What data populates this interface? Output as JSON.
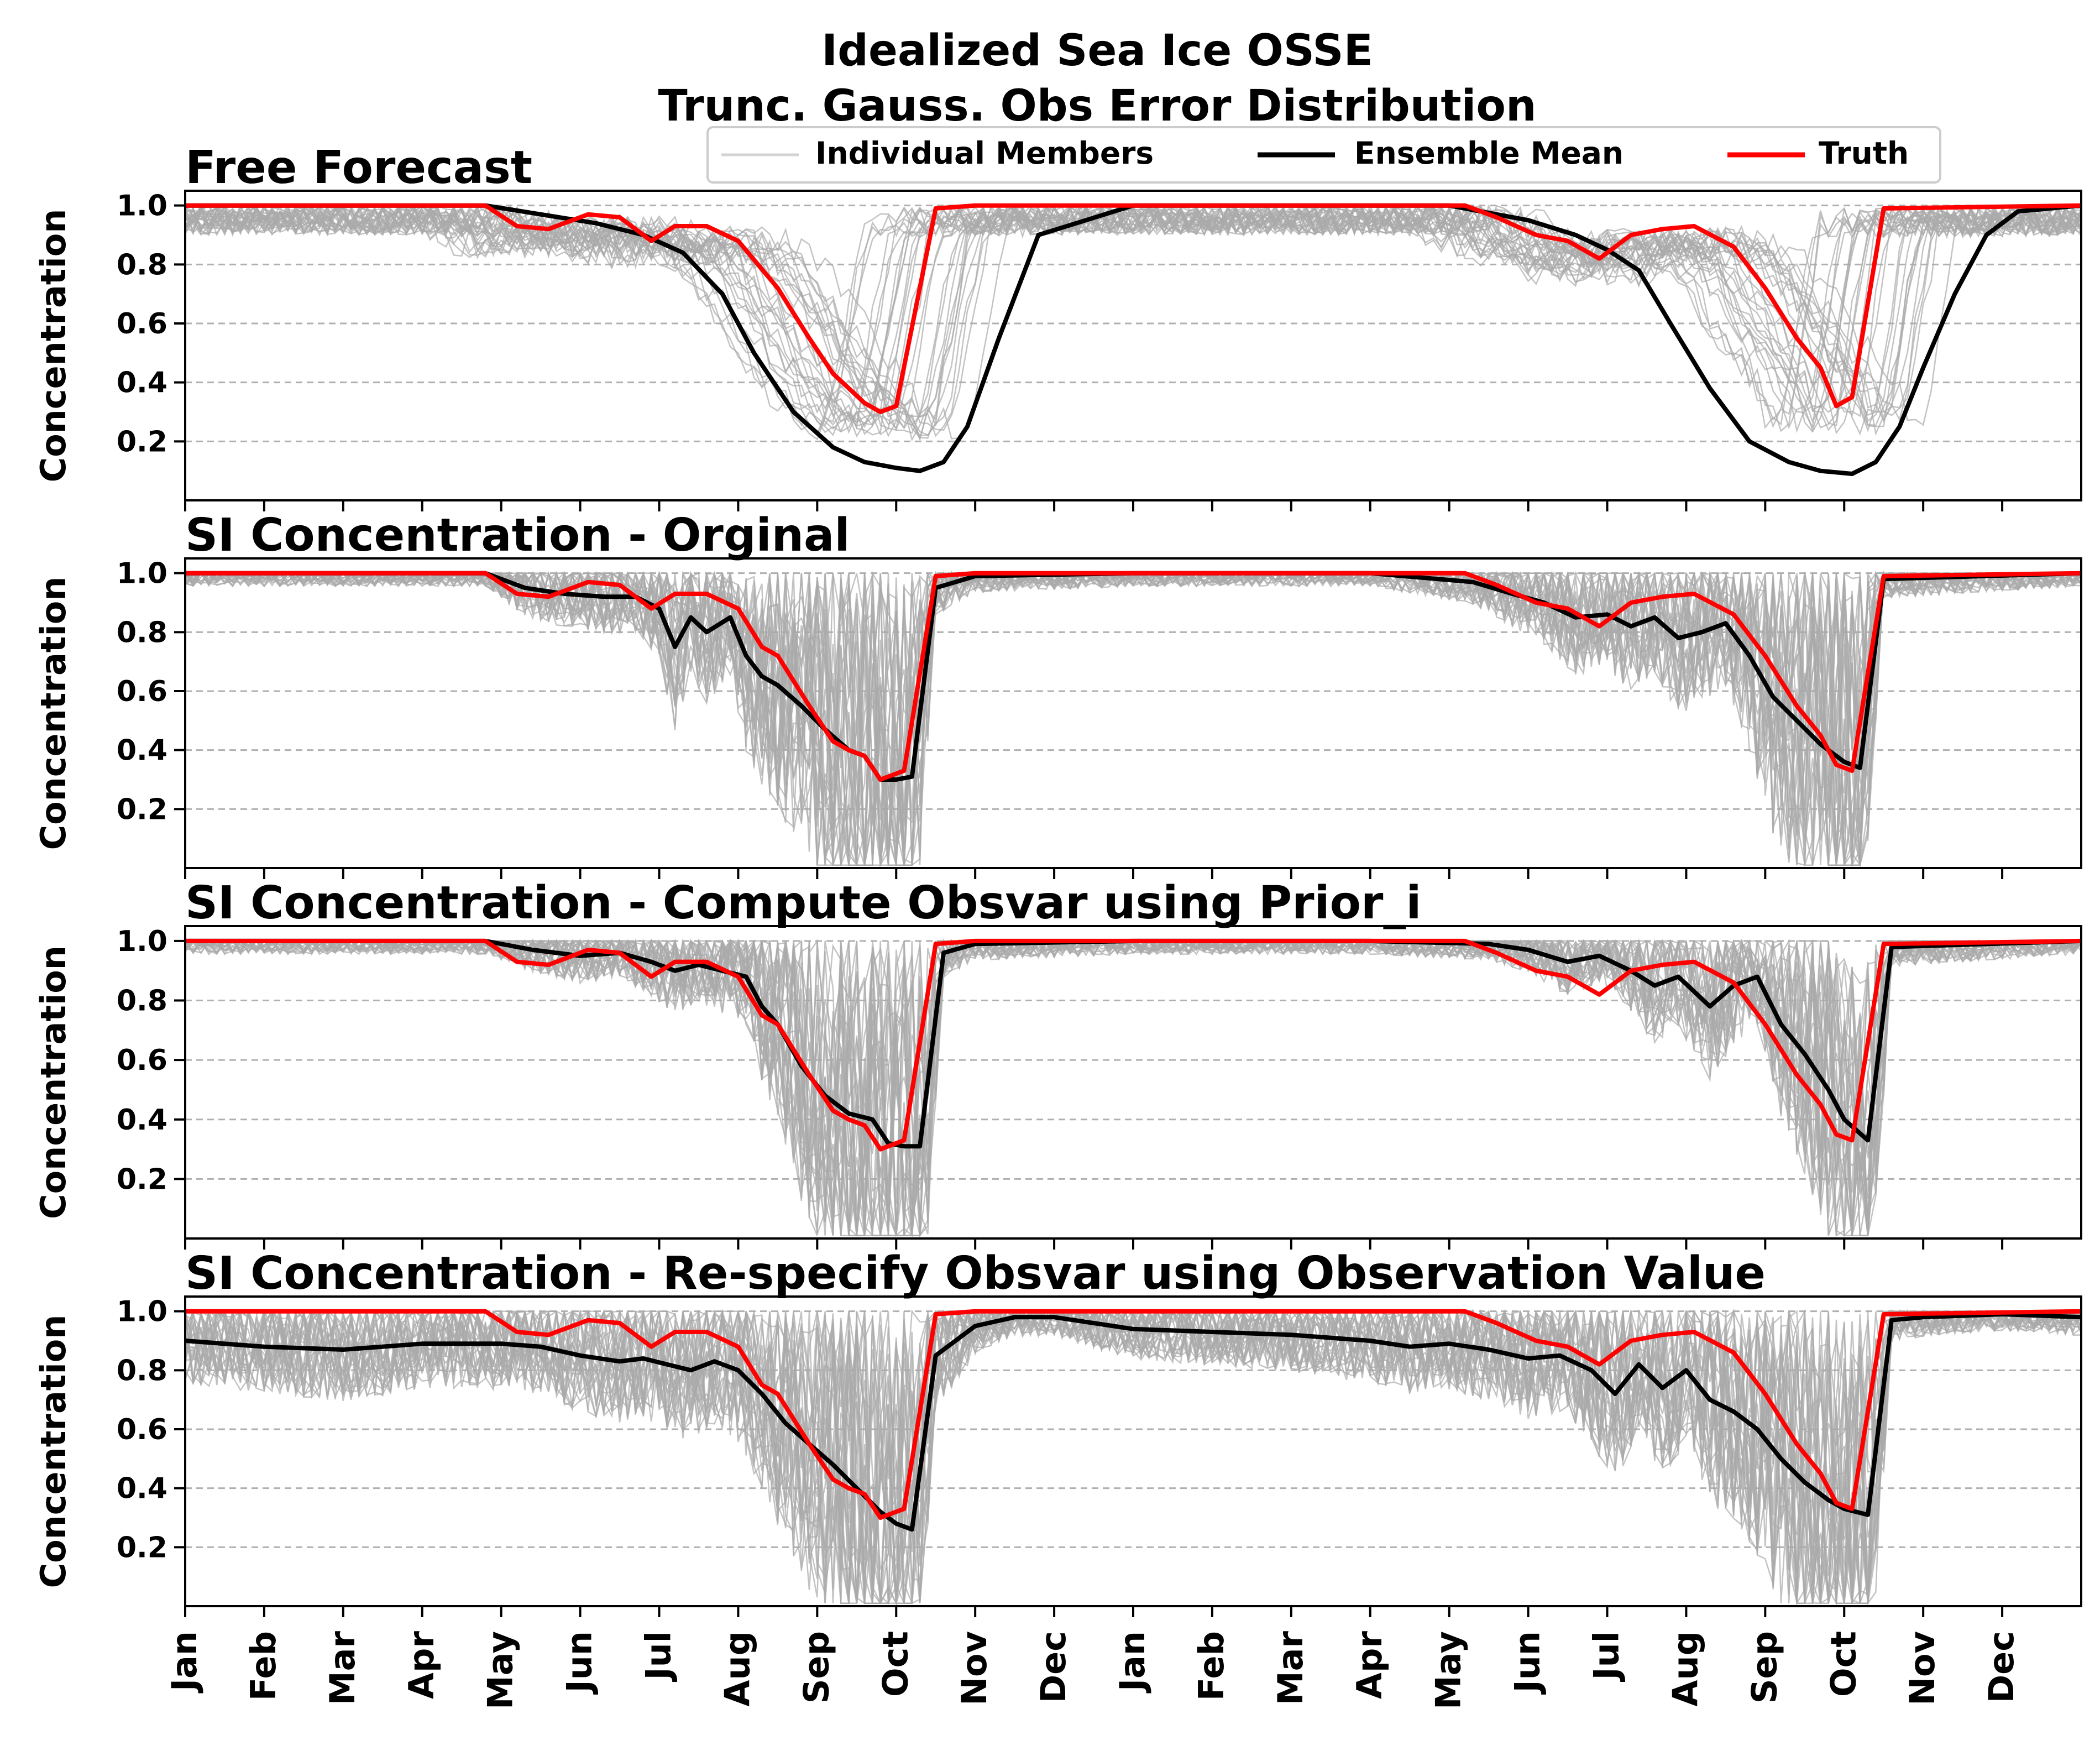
{
  "figure": {
    "title_line1": "Idealized Sea Ice OSSE",
    "title_line2": "Trunc. Gauss. Obs Error Distribution"
  },
  "legend": {
    "members": "Individual Members",
    "mean": "Ensemble Mean",
    "truth": "Truth"
  },
  "colors": {
    "members": "#a9a9a9",
    "mean": "#000000",
    "truth": "#ff0000",
    "grid": "#b0b0b0"
  },
  "chart_data": [
    {
      "type": "line",
      "title": "Free Forecast",
      "ylabel": "Concentration",
      "ylim": [
        0.0,
        1.05
      ],
      "yticks": [
        "0.2",
        "0.4",
        "0.6",
        "0.8",
        "1.0"
      ],
      "x_tick_labels": [
        "Jan",
        "Feb",
        "Mar",
        "Apr",
        "May",
        "Jun",
        "Jul",
        "Aug",
        "Sep",
        "Oct",
        "Nov",
        "Dec",
        "Jan",
        "Feb",
        "Mar",
        "Apr",
        "May",
        "Jun",
        "Jul",
        "Aug",
        "Sep",
        "Oct",
        "Nov",
        "Dec"
      ],
      "grid": "horizontal dashed",
      "legend_position": "top-right",
      "series": [
        {
          "name": "Truth",
          "x": [
            0,
            3.8,
            4.2,
            4.6,
            5.1,
            5.5,
            5.9,
            6.2,
            6.6,
            7.0,
            7.5,
            7.9,
            8.2,
            8.4,
            8.6,
            8.8,
            9.0,
            9.5,
            10,
            12,
            15,
            16.2,
            16.6,
            17.1,
            17.5,
            17.9,
            18.3,
            18.7,
            19.1,
            19.6,
            20.0,
            20.4,
            20.7,
            20.9,
            21.1,
            21.5,
            24
          ],
          "y": [
            1.0,
            1.0,
            0.93,
            0.92,
            0.97,
            0.96,
            0.88,
            0.93,
            0.93,
            0.88,
            0.72,
            0.55,
            0.43,
            0.38,
            0.33,
            0.3,
            0.32,
            0.99,
            1.0,
            1.0,
            1.0,
            1.0,
            0.96,
            0.9,
            0.88,
            0.82,
            0.9,
            0.92,
            0.93,
            0.86,
            0.72,
            0.55,
            0.45,
            0.32,
            0.35,
            0.99,
            1.0
          ]
        },
        {
          "name": "Ensemble Mean",
          "x": [
            0,
            3.8,
            4.5,
            5.2,
            5.8,
            6.3,
            6.8,
            7.2,
            7.7,
            8.2,
            8.6,
            9.0,
            9.3,
            9.6,
            9.9,
            10.3,
            10.8,
            12,
            16,
            17.0,
            17.6,
            18.0,
            18.4,
            18.8,
            19.3,
            19.8,
            20.3,
            20.7,
            21.1,
            21.4,
            21.7,
            22.0,
            22.4,
            22.8,
            23.2,
            24
          ],
          "y": [
            1.0,
            1.0,
            0.97,
            0.94,
            0.9,
            0.84,
            0.7,
            0.5,
            0.3,
            0.18,
            0.13,
            0.11,
            0.1,
            0.13,
            0.25,
            0.55,
            0.9,
            1.0,
            1.0,
            0.95,
            0.9,
            0.85,
            0.78,
            0.6,
            0.38,
            0.2,
            0.13,
            0.1,
            0.09,
            0.13,
            0.25,
            0.45,
            0.7,
            0.9,
            0.98,
            1.0
          ]
        }
      ]
    },
    {
      "type": "line",
      "title": "SI Concentration - Orginal",
      "ylabel": "Concentration",
      "ylim": [
        0.0,
        1.05
      ],
      "yticks": [
        "0.2",
        "0.4",
        "0.6",
        "0.8",
        "1.0"
      ],
      "grid": "horizontal dashed",
      "series": [
        {
          "name": "Truth",
          "x": [
            0,
            3.8,
            4.2,
            4.6,
            5.1,
            5.5,
            5.9,
            6.2,
            6.6,
            7.0,
            7.3,
            7.5,
            7.9,
            8.2,
            8.4,
            8.6,
            8.8,
            9.0,
            9.1,
            9.5,
            10,
            12,
            15,
            16.2,
            16.6,
            17.1,
            17.5,
            17.9,
            18.3,
            18.7,
            19.1,
            19.6,
            20.0,
            20.4,
            20.7,
            20.9,
            21.1,
            21.5,
            24
          ],
          "y": [
            1.0,
            1.0,
            0.93,
            0.92,
            0.97,
            0.96,
            0.88,
            0.93,
            0.93,
            0.88,
            0.75,
            0.72,
            0.55,
            0.43,
            0.4,
            0.38,
            0.3,
            0.32,
            0.33,
            0.99,
            1.0,
            1.0,
            1.0,
            1.0,
            0.96,
            0.9,
            0.88,
            0.82,
            0.9,
            0.92,
            0.93,
            0.86,
            0.72,
            0.55,
            0.45,
            0.35,
            0.33,
            0.99,
            1.0
          ]
        },
        {
          "name": "Ensemble Mean",
          "x": [
            0,
            3.8,
            4.3,
            4.8,
            5.3,
            5.7,
            6.0,
            6.2,
            6.4,
            6.6,
            6.9,
            7.1,
            7.3,
            7.5,
            7.8,
            8.1,
            8.4,
            8.6,
            8.8,
            9.0,
            9.2,
            9.5,
            10,
            12,
            15,
            16.3,
            16.8,
            17.2,
            17.6,
            18.0,
            18.3,
            18.6,
            18.9,
            19.2,
            19.5,
            19.8,
            20.1,
            20.4,
            20.7,
            21.0,
            21.2,
            21.5,
            24
          ],
          "y": [
            1.0,
            1.0,
            0.95,
            0.93,
            0.92,
            0.92,
            0.88,
            0.75,
            0.85,
            0.8,
            0.85,
            0.72,
            0.65,
            0.62,
            0.55,
            0.47,
            0.4,
            0.38,
            0.3,
            0.3,
            0.31,
            0.95,
            0.99,
            1.0,
            1.0,
            0.97,
            0.93,
            0.9,
            0.85,
            0.86,
            0.82,
            0.85,
            0.78,
            0.8,
            0.83,
            0.72,
            0.58,
            0.5,
            0.42,
            0.36,
            0.34,
            0.98,
            1.0
          ]
        }
      ]
    },
    {
      "type": "line",
      "title": "SI Concentration - Compute Obsvar using Prior_i",
      "ylabel": "Concentration",
      "ylim": [
        0.0,
        1.05
      ],
      "yticks": [
        "0.2",
        "0.4",
        "0.6",
        "0.8",
        "1.0"
      ],
      "grid": "horizontal dashed",
      "series": [
        {
          "name": "Truth",
          "x": [
            0,
            3.8,
            4.2,
            4.6,
            5.1,
            5.5,
            5.9,
            6.2,
            6.6,
            7.0,
            7.3,
            7.5,
            7.9,
            8.2,
            8.4,
            8.6,
            8.8,
            9.0,
            9.1,
            9.5,
            10,
            12,
            15,
            16.2,
            16.6,
            17.1,
            17.5,
            17.9,
            18.3,
            18.7,
            19.1,
            19.6,
            20.0,
            20.4,
            20.7,
            20.9,
            21.1,
            21.5,
            24
          ],
          "y": [
            1.0,
            1.0,
            0.93,
            0.92,
            0.97,
            0.96,
            0.88,
            0.93,
            0.93,
            0.88,
            0.75,
            0.72,
            0.55,
            0.43,
            0.4,
            0.38,
            0.3,
            0.32,
            0.33,
            0.99,
            1.0,
            1.0,
            1.0,
            1.0,
            0.96,
            0.9,
            0.88,
            0.82,
            0.9,
            0.92,
            0.93,
            0.86,
            0.72,
            0.55,
            0.45,
            0.35,
            0.33,
            0.99,
            1.0
          ]
        },
        {
          "name": "Ensemble Mean",
          "x": [
            0,
            3.8,
            4.4,
            5.0,
            5.5,
            5.9,
            6.2,
            6.5,
            6.8,
            7.1,
            7.3,
            7.5,
            7.8,
            8.1,
            8.4,
            8.7,
            8.9,
            9.1,
            9.3,
            9.6,
            10,
            12,
            15,
            16.5,
            17.0,
            17.5,
            17.9,
            18.3,
            18.6,
            18.9,
            19.3,
            19.6,
            19.9,
            20.2,
            20.5,
            20.8,
            21.0,
            21.3,
            21.6,
            24
          ],
          "y": [
            1.0,
            1.0,
            0.97,
            0.95,
            0.96,
            0.93,
            0.9,
            0.92,
            0.9,
            0.88,
            0.78,
            0.72,
            0.58,
            0.48,
            0.42,
            0.4,
            0.32,
            0.31,
            0.31,
            0.96,
            0.99,
            1.0,
            1.0,
            0.99,
            0.97,
            0.93,
            0.95,
            0.9,
            0.85,
            0.88,
            0.78,
            0.85,
            0.88,
            0.72,
            0.62,
            0.5,
            0.4,
            0.33,
            0.98,
            1.0
          ]
        }
      ]
    },
    {
      "type": "line",
      "title": "SI Concentration - Re-specify Obsvar using Observation Value",
      "ylabel": "Concentration",
      "ylim": [
        0.0,
        1.05
      ],
      "yticks": [
        "0.2",
        "0.4",
        "0.6",
        "0.8",
        "1.0"
      ],
      "grid": "horizontal dashed",
      "series": [
        {
          "name": "Truth",
          "x": [
            0,
            3.8,
            4.2,
            4.6,
            5.1,
            5.5,
            5.9,
            6.2,
            6.6,
            7.0,
            7.3,
            7.5,
            7.9,
            8.2,
            8.4,
            8.6,
            8.8,
            9.0,
            9.1,
            9.5,
            10,
            12,
            15,
            16.2,
            16.6,
            17.1,
            17.5,
            17.9,
            18.3,
            18.7,
            19.1,
            19.6,
            20.0,
            20.4,
            20.7,
            20.9,
            21.1,
            21.5,
            24
          ],
          "y": [
            1.0,
            1.0,
            0.93,
            0.92,
            0.97,
            0.96,
            0.88,
            0.93,
            0.93,
            0.88,
            0.75,
            0.72,
            0.55,
            0.43,
            0.4,
            0.38,
            0.3,
            0.32,
            0.33,
            0.99,
            1.0,
            1.0,
            1.0,
            1.0,
            0.96,
            0.9,
            0.88,
            0.82,
            0.9,
            0.92,
            0.93,
            0.86,
            0.72,
            0.55,
            0.45,
            0.35,
            0.33,
            0.99,
            1.0
          ]
        },
        {
          "name": "Ensemble Mean",
          "x": [
            0,
            1.0,
            2.0,
            3.0,
            4.0,
            4.5,
            5.0,
            5.5,
            5.8,
            6.1,
            6.4,
            6.7,
            7.0,
            7.3,
            7.6,
            7.9,
            8.2,
            8.5,
            8.8,
            9.0,
            9.2,
            9.5,
            10,
            10.5,
            11,
            12,
            13,
            14,
            15,
            15.5,
            16,
            16.5,
            17.0,
            17.4,
            17.8,
            18.1,
            18.4,
            18.7,
            19.0,
            19.3,
            19.6,
            19.9,
            20.2,
            20.5,
            20.8,
            21.0,
            21.3,
            21.6,
            22,
            23,
            24
          ],
          "y": [
            0.9,
            0.88,
            0.87,
            0.89,
            0.89,
            0.88,
            0.85,
            0.83,
            0.84,
            0.82,
            0.8,
            0.83,
            0.8,
            0.72,
            0.62,
            0.55,
            0.48,
            0.4,
            0.32,
            0.28,
            0.26,
            0.85,
            0.95,
            0.98,
            0.98,
            0.94,
            0.93,
            0.92,
            0.9,
            0.88,
            0.89,
            0.87,
            0.84,
            0.85,
            0.8,
            0.72,
            0.82,
            0.74,
            0.8,
            0.7,
            0.66,
            0.6,
            0.5,
            0.42,
            0.36,
            0.33,
            0.31,
            0.97,
            0.98,
            0.99,
            0.98
          ]
        }
      ]
    }
  ]
}
